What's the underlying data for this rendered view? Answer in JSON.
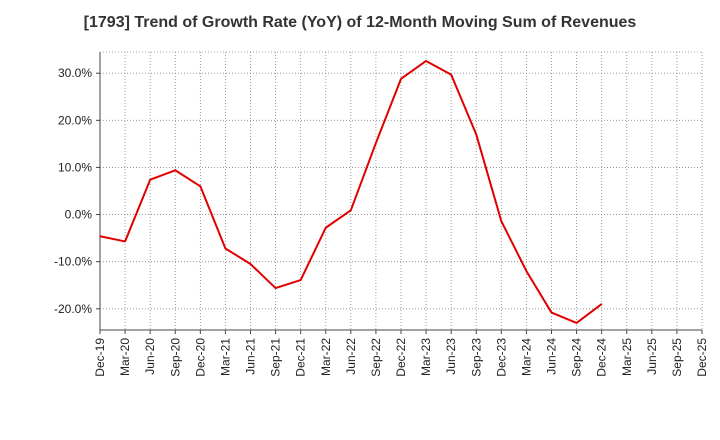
{
  "chart_data": {
    "type": "line",
    "title": "[1793]  Trend of Growth Rate (YoY) of 12-Month Moving Sum of Revenues",
    "xlabel": "",
    "ylabel": "",
    "ylim": [
      -24.5,
      34.5
    ],
    "yticks": [
      30,
      20,
      10,
      0,
      -10,
      -20
    ],
    "ytick_labels": [
      "30.0%",
      "20.0%",
      "10.0%",
      "0.0%",
      "-10.0%",
      "-20.0%"
    ],
    "x_categories": [
      "Dec-19",
      "Mar-20",
      "Jun-20",
      "Sep-20",
      "Dec-20",
      "Mar-21",
      "Jun-21",
      "Sep-21",
      "Dec-21",
      "Mar-22",
      "Jun-22",
      "Sep-22",
      "Dec-22",
      "Mar-23",
      "Jun-23",
      "Sep-23",
      "Dec-23",
      "Mar-24",
      "Jun-24",
      "Sep-24",
      "Dec-24",
      "Mar-25",
      "Jun-25",
      "Sep-25",
      "Dec-25"
    ],
    "x_tick_labels": [
      "Dec-19",
      "Mar-20",
      "Jun-20",
      "Sep-20",
      "Dec-20",
      "Mar-21",
      "Jun-21",
      "Sep-21",
      "Dec-21",
      "Mar-22",
      "Jun-22",
      "Sep-22",
      "Dec-22",
      "Mar-23",
      "Jun-23",
      "Sep-23",
      "Dec-23",
      "Mar-24",
      "Jun-24",
      "Sep-24",
      "Dec-24",
      "Mar-25",
      "Jun-25",
      "Sep-25",
      "Dec-25"
    ],
    "grid": true,
    "series": [
      {
        "name": "",
        "color": "#e00000",
        "x": [
          "Dec-19",
          "Mar-20",
          "Jun-20",
          "Sep-20",
          "Dec-20",
          "Mar-21",
          "Jun-21",
          "Sep-21",
          "Dec-21",
          "Mar-22",
          "Jun-22",
          "Sep-22",
          "Dec-22",
          "Mar-23",
          "Jun-23",
          "Sep-23",
          "Dec-23",
          "Mar-24",
          "Jun-24",
          "Sep-24",
          "Dec-24"
        ],
        "values": [
          -4.6,
          -5.7,
          7.4,
          9.4,
          6.0,
          -7.2,
          -10.5,
          -15.6,
          -13.9,
          -2.8,
          0.9,
          15.2,
          28.8,
          32.6,
          29.7,
          17.0,
          -1.4,
          -12.0,
          -20.8,
          -23.0,
          -19.0
        ]
      }
    ]
  }
}
